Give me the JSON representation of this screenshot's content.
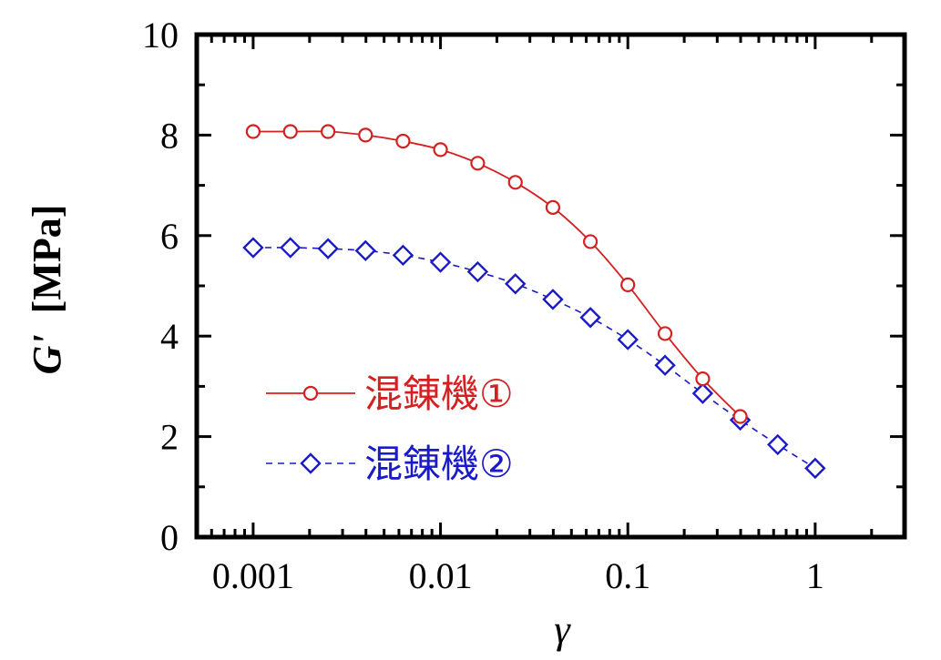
{
  "chart_data": {
    "type": "line",
    "title": "",
    "xlabel": "γ",
    "ylabel_main": "G'",
    "ylabel_unit": "[MPa]",
    "xscale": "log",
    "xlim": [
      0.0005,
      3
    ],
    "ylim": [
      0,
      10
    ],
    "x_ticks": [
      0.001,
      0.01,
      0.1,
      1
    ],
    "x_tick_labels": [
      "0.001",
      "0.01",
      "0.1",
      "1"
    ],
    "y_ticks": [
      0,
      2,
      4,
      6,
      8,
      10
    ],
    "y_tick_labels": [
      "0",
      "2",
      "4",
      "6",
      "8",
      "10"
    ],
    "grid": false,
    "legend_position": "lower-left",
    "series": [
      {
        "name": "混錬機①",
        "color": "#d42020",
        "marker": "circle",
        "line_style": "solid",
        "x": [
          0.001,
          0.00158,
          0.00251,
          0.00398,
          0.00631,
          0.01,
          0.0158,
          0.0251,
          0.0398,
          0.0631,
          0.1,
          0.158,
          0.251,
          0.398
        ],
        "y": [
          8.07,
          8.07,
          8.07,
          8.0,
          7.88,
          7.71,
          7.44,
          7.06,
          6.56,
          5.88,
          5.02,
          4.05,
          3.15,
          2.4
        ]
      },
      {
        "name": "混錬機②",
        "color": "#1a1ac8",
        "marker": "diamond",
        "line_style": "dashed",
        "x": [
          0.001,
          0.00158,
          0.00251,
          0.00398,
          0.00631,
          0.01,
          0.0158,
          0.0251,
          0.0398,
          0.0631,
          0.1,
          0.158,
          0.251,
          0.398,
          0.631,
          1.0
        ],
        "y": [
          5.76,
          5.76,
          5.74,
          5.7,
          5.61,
          5.47,
          5.28,
          5.04,
          4.73,
          4.37,
          3.93,
          3.42,
          2.86,
          2.33,
          1.84,
          1.37
        ]
      }
    ]
  }
}
